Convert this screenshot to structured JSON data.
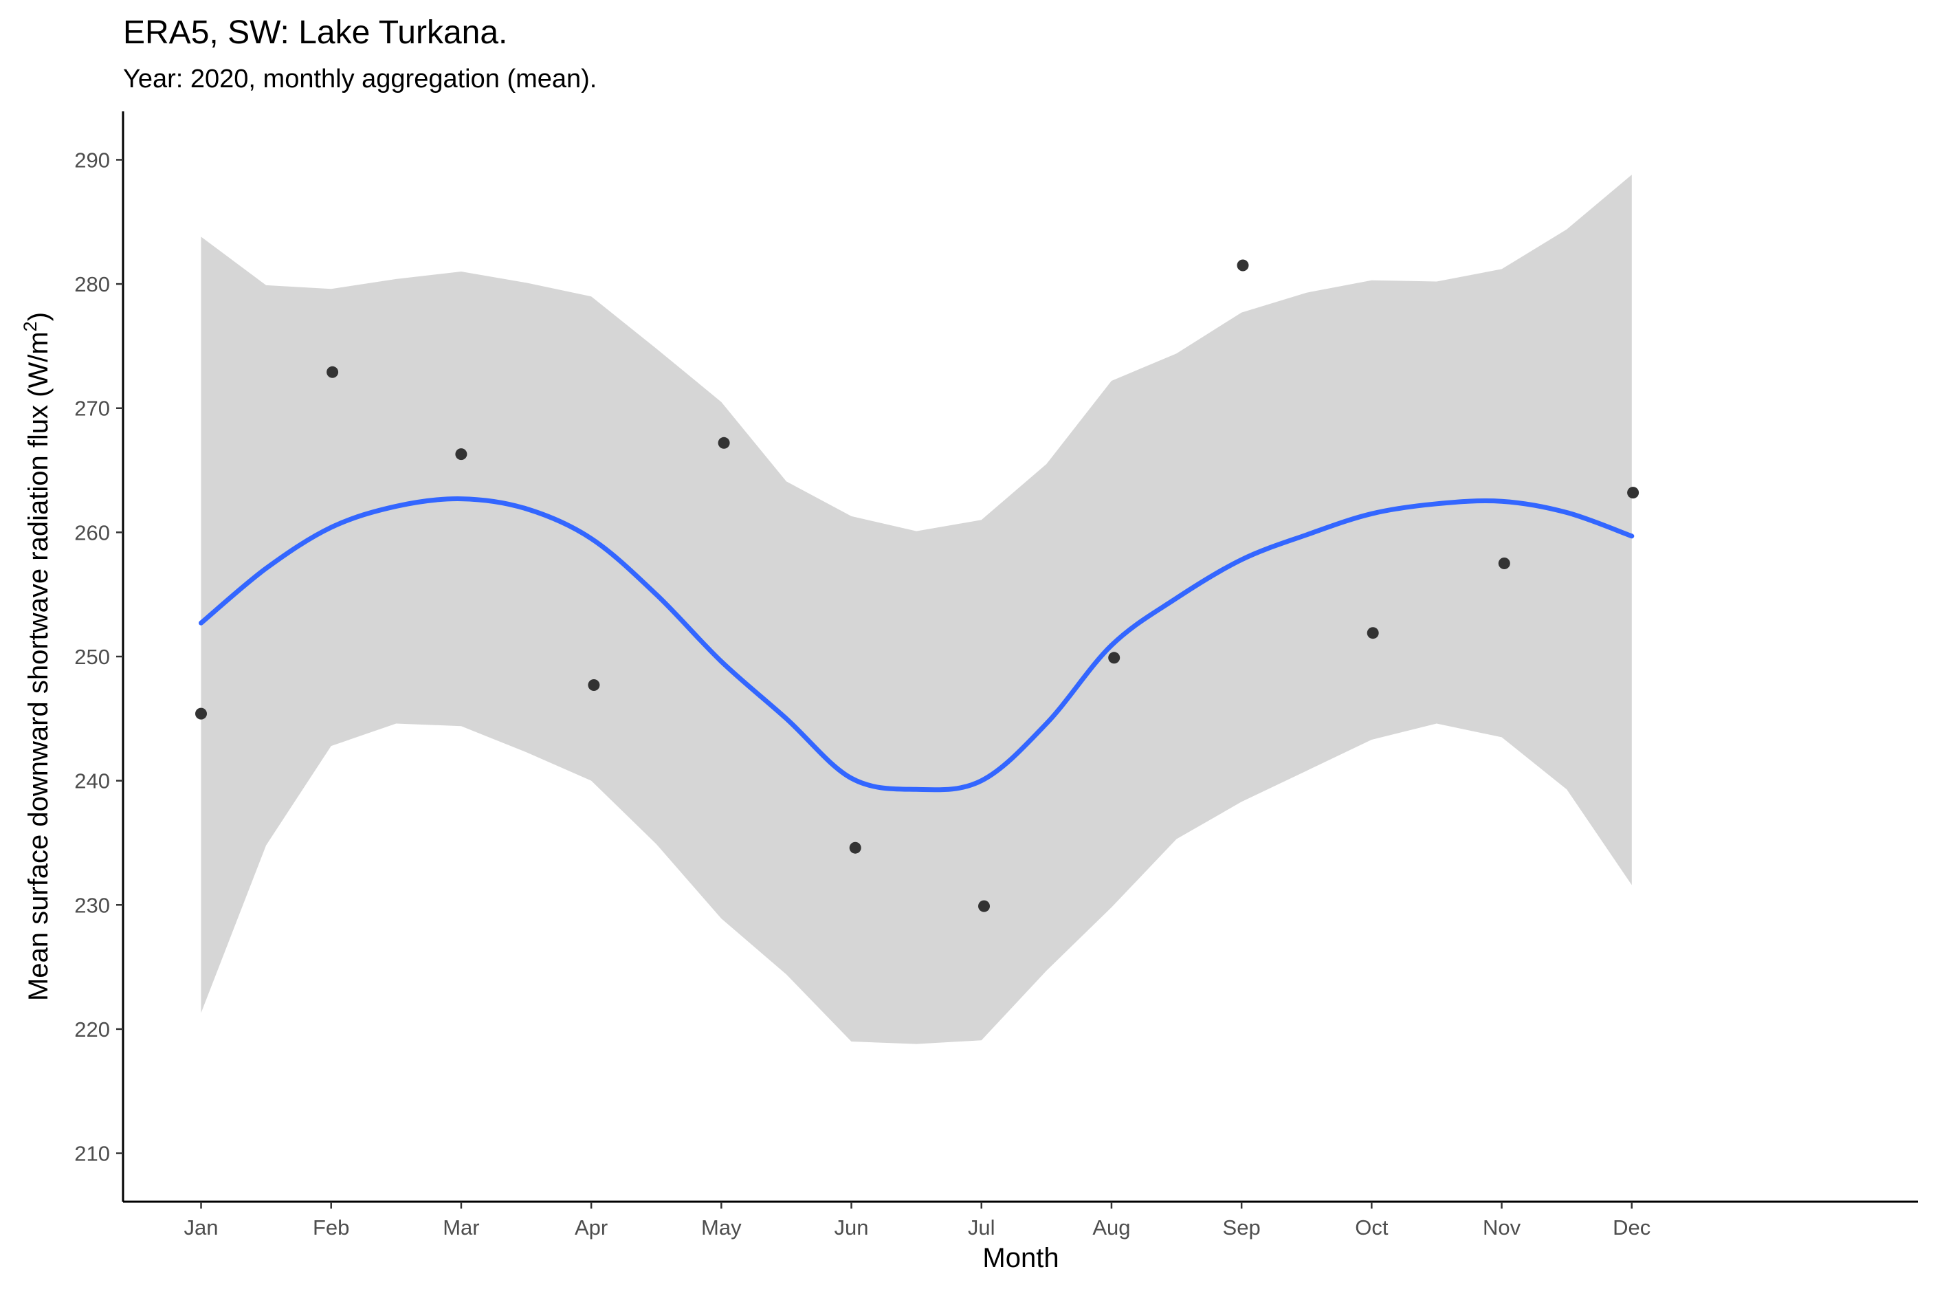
{
  "chart_data": {
    "type": "scatter",
    "title": "ERA5, SW: Lake Turkana.",
    "subtitle": "Year: 2020, monthly aggregation (mean).",
    "xlabel": "Month",
    "ylabel": "Mean surface downward shortwave radiation flux (W/m",
    "ylabel_superscript": "2",
    "ylabel_close": ")",
    "categories": [
      "Jan",
      "Feb",
      "Mar",
      "Apr",
      "May",
      "Jun",
      "Jul",
      "Aug",
      "Sep",
      "Oct",
      "Nov",
      "Dec"
    ],
    "y_ticks": [
      210,
      220,
      230,
      240,
      250,
      260,
      270,
      280,
      290
    ],
    "ylim": [
      206.1,
      293.9
    ],
    "xlim": [
      0.4,
      14.2
    ],
    "grid": false,
    "legend": "none",
    "colors": {
      "smooth": "#3366ff",
      "band": "#d6d6d6",
      "points": "#333333"
    },
    "series": [
      {
        "kind": "points",
        "x": [
          1,
          2.01,
          3,
          4.02,
          5.02,
          6.03,
          7.02,
          8.02,
          9.01,
          10.01,
          11.02,
          12.01
        ],
        "y": [
          245.4,
          272.9,
          266.3,
          247.7,
          267.2,
          234.6,
          229.9,
          249.9,
          281.5,
          251.9,
          257.5,
          263.2
        ]
      },
      {
        "kind": "loess",
        "x": [
          1,
          1.5,
          2,
          2.5,
          3,
          3.5,
          4,
          4.5,
          5,
          5.5,
          6,
          6.5,
          7,
          7.5,
          8,
          8.5,
          9,
          9.5,
          10,
          10.5,
          11,
          11.5,
          12
        ],
        "y": [
          252.7,
          257.1,
          260.4,
          262.1,
          262.7,
          261.9,
          259.5,
          255.0,
          249.6,
          245.0,
          240.2,
          239.3,
          240.0,
          244.6,
          250.9,
          254.7,
          257.8,
          259.8,
          261.5,
          262.3,
          262.5,
          261.6,
          259.7
        ],
        "lo": [
          221.3,
          234.8,
          242.8,
          244.6,
          244.4,
          242.3,
          240.0,
          234.9,
          228.9,
          224.4,
          219.0,
          218.8,
          219.1,
          224.7,
          229.8,
          235.3,
          238.3,
          240.8,
          243.3,
          244.6,
          243.5,
          239.3,
          231.6
        ],
        "hi": [
          283.8,
          279.9,
          279.6,
          280.4,
          281.0,
          280.1,
          279.0,
          274.8,
          270.5,
          264.1,
          261.3,
          260.1,
          261.0,
          265.5,
          272.2,
          274.4,
          277.7,
          279.3,
          280.3,
          280.2,
          281.2,
          284.4,
          288.8
        ]
      }
    ]
  }
}
